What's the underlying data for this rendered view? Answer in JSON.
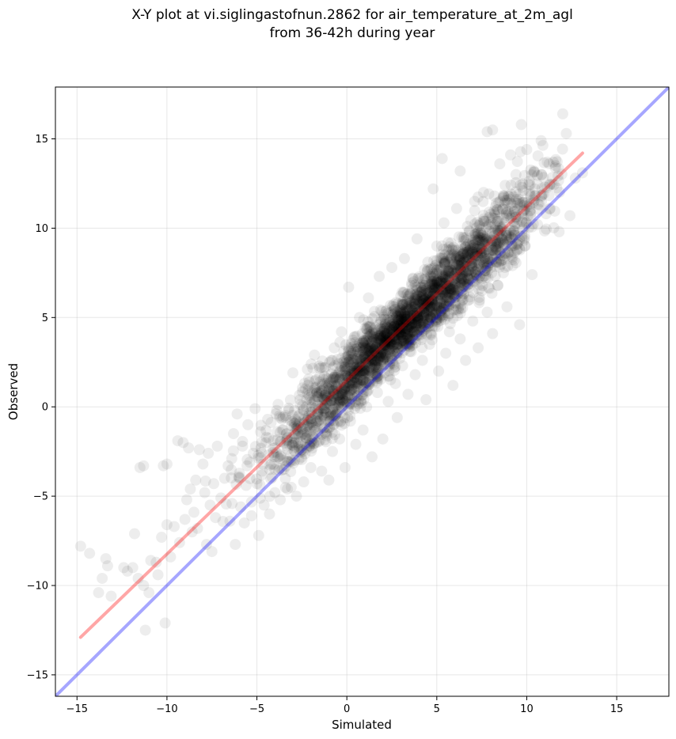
{
  "chart_data": {
    "type": "scatter",
    "title": [
      "X-Y plot at vi.siglingastofnun.2862 for air_temperature_at_2m_agl",
      "from 36-42h during year"
    ],
    "xlabel": "Simulated",
    "ylabel": "Observed",
    "xlim": [
      -16.2,
      17.9
    ],
    "ylim": [
      -16.2,
      17.9
    ],
    "xticks": [
      -15,
      -10,
      -5,
      0,
      5,
      10,
      15
    ],
    "yticks": [
      -15,
      -10,
      -5,
      0,
      5,
      10,
      15
    ],
    "xtick_labels": [
      "−15",
      "−10",
      "−5",
      "0",
      "5",
      "10",
      "15"
    ],
    "ytick_labels": [
      "−15",
      "−10",
      "−5",
      "0",
      "5",
      "10",
      "15"
    ],
    "grid": true,
    "point_color": "#000000",
    "point_alpha": 0.07,
    "reference_line": {
      "color": "#0000ff",
      "alpha": 0.35,
      "x": [
        -16.2,
        17.9
      ],
      "y": [
        -16.2,
        17.9
      ]
    },
    "fit_line": {
      "color": "#ff0000",
      "alpha": 0.35,
      "x": [
        -14.8,
        13.1
      ],
      "y": [
        -12.9,
        14.2
      ]
    },
    "points": [
      [
        -14.8,
        -7.8
      ],
      [
        -14.3,
        -8.2
      ],
      [
        -13.8,
        -10.4
      ],
      [
        -13.6,
        -9.6
      ],
      [
        -13.4,
        -8.5
      ],
      [
        -13.3,
        -8.9
      ],
      [
        -13.1,
        -10.6
      ],
      [
        -12.4,
        -9.0
      ],
      [
        -12.2,
        -9.2
      ],
      [
        -11.9,
        -9.0
      ],
      [
        -11.8,
        -7.1
      ],
      [
        -11.6,
        -9.6
      ],
      [
        -11.5,
        -3.4
      ],
      [
        -11.3,
        -3.3
      ],
      [
        -11.3,
        -10.0
      ],
      [
        -11.2,
        -12.5
      ],
      [
        -11.0,
        -10.4
      ],
      [
        -10.9,
        -8.6
      ],
      [
        -10.6,
        -8.7
      ],
      [
        -10.5,
        -9.4
      ],
      [
        -10.3,
        -7.3
      ],
      [
        -10.2,
        -3.3
      ],
      [
        -10.1,
        -12.1
      ],
      [
        -10.0,
        -6.6
      ],
      [
        -10.0,
        -3.2
      ],
      [
        -9.8,
        -8.4
      ],
      [
        -9.6,
        -6.7
      ],
      [
        -9.4,
        -1.9
      ],
      [
        -9.3,
        -7.6
      ],
      [
        -9.1,
        -2.0
      ],
      [
        -9.0,
        -6.3
      ],
      [
        -8.9,
        -5.2
      ],
      [
        -8.8,
        -2.3
      ],
      [
        -8.7,
        -4.6
      ],
      [
        -8.6,
        -7.0
      ],
      [
        -8.5,
        -5.9
      ],
      [
        -8.4,
        -4.1
      ],
      [
        -8.3,
        -6.8
      ],
      [
        -8.2,
        -2.4
      ],
      [
        -8.0,
        -3.2
      ],
      [
        -7.9,
        -4.8
      ],
      [
        -7.8,
        -7.7
      ],
      [
        -7.7,
        -2.6
      ],
      [
        -7.6,
        -5.5
      ],
      [
        -7.5,
        -8.1
      ],
      [
        -7.4,
        -4.3
      ],
      [
        -7.3,
        -6.2
      ],
      [
        -7.2,
        -2.2
      ],
      [
        -7.0,
        -5.1
      ],
      [
        -6.8,
        -4.0
      ],
      [
        -6.6,
        -3.3
      ],
      [
        -6.5,
        -6.4
      ],
      [
        -6.4,
        -2.9
      ],
      [
        -6.3,
        -1.5
      ],
      [
        -6.2,
        -7.7
      ],
      [
        -6.1,
        -0.4
      ],
      [
        -6.0,
        -3.9
      ],
      [
        -5.9,
        -5.6
      ],
      [
        -5.8,
        -2.2
      ],
      [
        -5.7,
        -6.5
      ],
      [
        -5.6,
        -4.4
      ],
      [
        -5.5,
        -1.0
      ],
      [
        -5.4,
        -3.1
      ],
      [
        -5.3,
        -6.1
      ],
      [
        -5.2,
        -2.6
      ],
      [
        -5.1,
        -0.1
      ],
      [
        -5.0,
        -4.3
      ],
      [
        -4.9,
        -7.2
      ],
      [
        -4.8,
        -1.4
      ],
      [
        -4.7,
        -3.6
      ],
      [
        -4.6,
        -5.5
      ],
      [
        -4.5,
        -2.0
      ],
      [
        -4.4,
        -0.7
      ],
      [
        -4.3,
        -6.0
      ],
      [
        -4.2,
        -3.2
      ],
      [
        -4.1,
        -1.9
      ],
      [
        -4.0,
        -4.8
      ],
      [
        -3.9,
        -0.2
      ],
      [
        -3.8,
        -2.8
      ],
      [
        -3.7,
        -5.2
      ],
      [
        -3.6,
        -1.3
      ],
      [
        -3.5,
        -3.5
      ],
      [
        -3.4,
        -0.6
      ],
      [
        -3.3,
        -4.6
      ],
      [
        -3.2,
        -2.1
      ],
      [
        -3.0,
        1.9
      ],
      [
        -2.9,
        -3.0
      ],
      [
        -2.8,
        -5.0
      ],
      [
        -2.7,
        -1.0
      ],
      [
        -2.6,
        0.4
      ],
      [
        -2.5,
        -2.4
      ],
      [
        -2.4,
        -4.2
      ],
      [
        -2.3,
        1.0
      ],
      [
        -2.2,
        -1.6
      ],
      [
        -2.0,
        -3.4
      ],
      [
        -1.9,
        0.2
      ],
      [
        -1.8,
        2.9
      ],
      [
        -1.7,
        -2.0
      ],
      [
        -1.6,
        -0.8
      ],
      [
        -1.5,
        1.4
      ],
      [
        -1.4,
        -3.6
      ],
      [
        -1.3,
        -0.2
      ],
      [
        -1.2,
        2.2
      ],
      [
        -1.1,
        -1.4
      ],
      [
        -1.0,
        -4.1
      ],
      [
        -0.9,
        0.6
      ],
      [
        -0.8,
        -2.5
      ],
      [
        -0.7,
        3.3
      ],
      [
        -0.6,
        -0.4
      ],
      [
        -0.5,
        1.8
      ],
      [
        -0.4,
        -1.8
      ],
      [
        -0.3,
        4.2
      ],
      [
        -0.2,
        0.2
      ],
      [
        -0.1,
        -3.4
      ],
      [
        0.0,
        2.6
      ],
      [
        0.1,
        6.7
      ],
      [
        0.2,
        -0.8
      ],
      [
        0.3,
        1.2
      ],
      [
        0.4,
        3.9
      ],
      [
        0.5,
        -2.1
      ],
      [
        0.6,
        0.6
      ],
      [
        0.7,
        5.0
      ],
      [
        0.8,
        2.0
      ],
      [
        0.9,
        -1.3
      ],
      [
        1.0,
        3.3
      ],
      [
        1.1,
        0.0
      ],
      [
        1.2,
        6.1
      ],
      [
        1.3,
        1.4
      ],
      [
        1.4,
        -2.8
      ],
      [
        1.5,
        4.3
      ],
      [
        1.6,
        2.5
      ],
      [
        1.7,
        0.8
      ],
      [
        1.8,
        7.3
      ],
      [
        1.9,
        3.6
      ],
      [
        2.0,
        -1.8
      ],
      [
        2.1,
        1.9
      ],
      [
        2.2,
        5.4
      ],
      [
        2.3,
        0.3
      ],
      [
        2.4,
        3.0
      ],
      [
        2.5,
        7.8
      ],
      [
        2.6,
        4.6
      ],
      [
        2.7,
        1.3
      ],
      [
        2.8,
        -0.6
      ],
      [
        2.9,
        3.8
      ],
      [
        3.0,
        6.2
      ],
      [
        3.1,
        2.3
      ],
      [
        3.2,
        8.3
      ],
      [
        3.3,
        4.9
      ],
      [
        3.4,
        0.7
      ],
      [
        3.5,
        3.1
      ],
      [
        3.6,
        6.8
      ],
      [
        3.7,
        5.6
      ],
      [
        3.8,
        1.8
      ],
      [
        3.9,
        9.4
      ],
      [
        4.0,
        4.0
      ],
      [
        4.1,
        7.2
      ],
      [
        4.2,
        2.6
      ],
      [
        4.3,
        5.3
      ],
      [
        4.4,
        0.4
      ],
      [
        4.5,
        8.1
      ],
      [
        4.6,
        3.5
      ],
      [
        4.7,
        6.0
      ],
      [
        4.8,
        12.2
      ],
      [
        4.9,
        4.5
      ],
      [
        5.0,
        9.0
      ],
      [
        5.1,
        2.0
      ],
      [
        5.2,
        6.6
      ],
      [
        5.3,
        5.0
      ],
      [
        5.4,
        10.3
      ],
      [
        5.5,
        3.0
      ],
      [
        5.6,
        7.6
      ],
      [
        5.7,
        4.2
      ],
      [
        5.8,
        8.8
      ],
      [
        5.9,
        1.2
      ],
      [
        6.0,
        6.3
      ],
      [
        6.1,
        11.1
      ],
      [
        6.2,
        5.5
      ],
      [
        6.3,
        3.8
      ],
      [
        6.4,
        9.5
      ],
      [
        6.5,
        7.1
      ],
      [
        6.6,
        2.6
      ],
      [
        6.7,
        10.1
      ],
      [
        6.8,
        6.0
      ],
      [
        6.9,
        8.2
      ],
      [
        7.0,
        4.8
      ],
      [
        7.1,
        11.5
      ],
      [
        7.2,
        7.4
      ],
      [
        7.3,
        3.3
      ],
      [
        7.4,
        9.3
      ],
      [
        7.5,
        6.5
      ],
      [
        7.6,
        12.0
      ],
      [
        7.7,
        8.6
      ],
      [
        7.8,
        5.3
      ],
      [
        7.9,
        10.6
      ],
      [
        8.0,
        7.8
      ],
      [
        8.1,
        4.1
      ],
      [
        8.2,
        11.8
      ],
      [
        8.3,
        9.1
      ],
      [
        8.4,
        6.8
      ],
      [
        8.5,
        13.6
      ],
      [
        8.6,
        10.0
      ],
      [
        8.7,
        7.5
      ],
      [
        8.8,
        12.4
      ],
      [
        8.9,
        5.6
      ],
      [
        9.0,
        9.6
      ],
      [
        9.1,
        14.1
      ],
      [
        9.2,
        11.3
      ],
      [
        9.3,
        8.2
      ],
      [
        9.4,
        13.0
      ],
      [
        9.5,
        10.5
      ],
      [
        9.6,
        4.6
      ],
      [
        9.7,
        15.8
      ],
      [
        9.8,
        12.1
      ],
      [
        9.9,
        9.0
      ],
      [
        10.0,
        14.4
      ],
      [
        10.2,
        11.0
      ],
      [
        10.3,
        7.4
      ],
      [
        10.4,
        13.2
      ],
      [
        10.6,
        10.2
      ],
      [
        10.8,
        14.9
      ],
      [
        11.0,
        12.3
      ],
      [
        11.3,
        11.1
      ],
      [
        11.6,
        13.5
      ],
      [
        11.8,
        9.8
      ],
      [
        12.0,
        16.4
      ],
      [
        12.2,
        15.3
      ],
      [
        12.4,
        10.7
      ],
      [
        12.7,
        12.8
      ],
      [
        13.1,
        13.1
      ],
      [
        7.8,
        15.4
      ],
      [
        8.1,
        15.5
      ],
      [
        6.3,
        13.2
      ],
      [
        5.3,
        13.9
      ]
    ]
  }
}
